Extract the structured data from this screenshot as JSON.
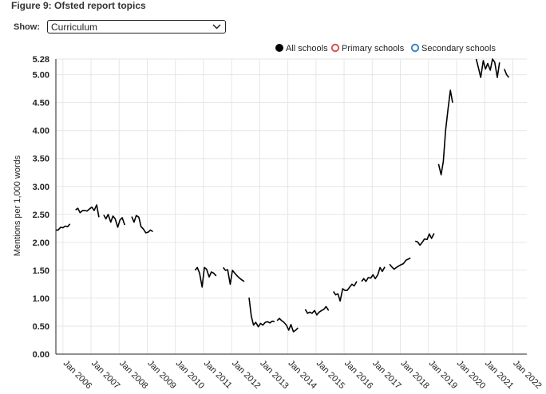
{
  "figure": {
    "title": "Figure 9: Ofsted report topics",
    "show_label": "Show:",
    "selected_option": "Curriculum"
  },
  "chart_data": {
    "type": "line",
    "ylabel": "Mentions per 1,000 words",
    "xlabel": "",
    "ylim": [
      0,
      5.28
    ],
    "yticks": [
      {
        "value": 0.0,
        "label": "0.00"
      },
      {
        "value": 0.5,
        "label": "0.50"
      },
      {
        "value": 1.0,
        "label": "1.00"
      },
      {
        "value": 1.5,
        "label": "1.50"
      },
      {
        "value": 2.0,
        "label": "2.00"
      },
      {
        "value": 2.5,
        "label": "2.50"
      },
      {
        "value": 3.0,
        "label": "3.00"
      },
      {
        "value": 3.5,
        "label": "3.50"
      },
      {
        "value": 4.0,
        "label": "4.00"
      },
      {
        "value": 4.5,
        "label": "4.50"
      },
      {
        "value": 5.0,
        "label": "5.00"
      },
      {
        "value": 5.28,
        "label": "5.28"
      }
    ],
    "xlim": [
      2005.75,
      2022.5
    ],
    "xticks": [
      {
        "value": 2006,
        "label": "Jan 2006"
      },
      {
        "value": 2007,
        "label": "Jan 2007"
      },
      {
        "value": 2008,
        "label": "Jan 2008"
      },
      {
        "value": 2009,
        "label": "Jan 2009"
      },
      {
        "value": 2010,
        "label": "Jan 2010"
      },
      {
        "value": 2011,
        "label": "Jan 2011"
      },
      {
        "value": 2012,
        "label": "Jan 2012"
      },
      {
        "value": 2013,
        "label": "Jan 2013"
      },
      {
        "value": 2014,
        "label": "Jan 2014"
      },
      {
        "value": 2015,
        "label": "Jan 2015"
      },
      {
        "value": 2016,
        "label": "Jan 2016"
      },
      {
        "value": 2017,
        "label": "Jan 2017"
      },
      {
        "value": 2018,
        "label": "Jan 2018"
      },
      {
        "value": 2019,
        "label": "Jan 2019"
      },
      {
        "value": 2020,
        "label": "Jan 2020"
      },
      {
        "value": 2021,
        "label": "Jan 2021"
      },
      {
        "value": 2022,
        "label": "Jan 2022"
      }
    ],
    "legend": {
      "placement": "top-right",
      "entries": [
        {
          "name": "All schools",
          "color": "#000000",
          "filled": true
        },
        {
          "name": "Primary schools",
          "color": "#d9534f",
          "filled": false
        },
        {
          "name": "Secondary schools",
          "color": "#3a87c8",
          "filled": false
        }
      ]
    },
    "grid": true,
    "series": [
      {
        "name": "All schools",
        "color": "#000000",
        "segments": [
          [
            [
              2005.75,
              2.22
            ],
            [
              2005.83,
              2.22
            ],
            [
              2005.92,
              2.27
            ],
            [
              2006.0,
              2.26
            ],
            [
              2006.08,
              2.29
            ],
            [
              2006.17,
              2.28
            ],
            [
              2006.25,
              2.33
            ]
          ],
          [
            [
              2006.45,
              2.58
            ],
            [
              2006.53,
              2.61
            ],
            [
              2006.61,
              2.53
            ],
            [
              2006.7,
              2.57
            ],
            [
              2006.78,
              2.57
            ],
            [
              2006.86,
              2.56
            ],
            [
              2006.95,
              2.6
            ],
            [
              2007.03,
              2.63
            ],
            [
              2007.11,
              2.57
            ],
            [
              2007.2,
              2.67
            ],
            [
              2007.28,
              2.45
            ]
          ],
          [
            [
              2007.45,
              2.49
            ],
            [
              2007.53,
              2.42
            ],
            [
              2007.61,
              2.5
            ],
            [
              2007.7,
              2.36
            ],
            [
              2007.78,
              2.47
            ],
            [
              2007.86,
              2.42
            ],
            [
              2007.95,
              2.27
            ],
            [
              2008.03,
              2.4
            ],
            [
              2008.11,
              2.44
            ],
            [
              2008.2,
              2.31
            ]
          ],
          [
            [
              2008.45,
              2.46
            ],
            [
              2008.53,
              2.36
            ],
            [
              2008.61,
              2.48
            ],
            [
              2008.7,
              2.45
            ],
            [
              2008.78,
              2.28
            ],
            [
              2008.86,
              2.24
            ],
            [
              2008.95,
              2.17
            ],
            [
              2009.03,
              2.18
            ],
            [
              2009.11,
              2.22
            ],
            [
              2009.2,
              2.19
            ]
          ],
          [
            [
              2010.7,
              1.5
            ],
            [
              2010.78,
              1.55
            ],
            [
              2010.86,
              1.45
            ],
            [
              2010.95,
              1.2
            ],
            [
              2011.03,
              1.55
            ],
            [
              2011.11,
              1.52
            ],
            [
              2011.2,
              1.38
            ],
            [
              2011.28,
              1.47
            ],
            [
              2011.36,
              1.45
            ],
            [
              2011.45,
              1.4
            ]
          ],
          [
            [
              2011.7,
              1.55
            ],
            [
              2011.78,
              1.5
            ],
            [
              2011.86,
              1.51
            ],
            [
              2011.95,
              1.25
            ],
            [
              2012.03,
              1.5
            ],
            [
              2012.11,
              1.45
            ],
            [
              2012.2,
              1.4
            ],
            [
              2012.28,
              1.36
            ],
            [
              2012.36,
              1.33
            ],
            [
              2012.45,
              1.3
            ]
          ],
          [
            [
              2012.62,
              1.01
            ],
            [
              2012.7,
              0.68
            ],
            [
              2012.78,
              0.52
            ],
            [
              2012.86,
              0.57
            ],
            [
              2012.95,
              0.49
            ],
            [
              2013.03,
              0.55
            ],
            [
              2013.11,
              0.52
            ],
            [
              2013.2,
              0.57
            ],
            [
              2013.28,
              0.58
            ],
            [
              2013.36,
              0.56
            ],
            [
              2013.45,
              0.59
            ],
            [
              2013.53,
              0.58
            ]
          ],
          [
            [
              2013.62,
              0.6
            ],
            [
              2013.7,
              0.64
            ],
            [
              2013.78,
              0.6
            ],
            [
              2013.86,
              0.57
            ],
            [
              2013.95,
              0.52
            ],
            [
              2014.03,
              0.43
            ],
            [
              2014.11,
              0.53
            ],
            [
              2014.2,
              0.4
            ],
            [
              2014.28,
              0.43
            ],
            [
              2014.36,
              0.47
            ]
          ],
          [
            [
              2014.62,
              0.8
            ],
            [
              2014.7,
              0.73
            ],
            [
              2014.78,
              0.75
            ],
            [
              2014.86,
              0.73
            ],
            [
              2014.95,
              0.78
            ],
            [
              2015.03,
              0.7
            ],
            [
              2015.11,
              0.75
            ],
            [
              2015.2,
              0.78
            ],
            [
              2015.28,
              0.8
            ],
            [
              2015.36,
              0.85
            ],
            [
              2015.45,
              0.78
            ]
          ],
          [
            [
              2015.62,
              1.12
            ],
            [
              2015.7,
              1.06
            ],
            [
              2015.78,
              1.08
            ],
            [
              2015.86,
              0.95
            ],
            [
              2015.95,
              1.17
            ],
            [
              2016.03,
              1.14
            ],
            [
              2016.11,
              1.14
            ],
            [
              2016.2,
              1.2
            ],
            [
              2016.28,
              1.25
            ],
            [
              2016.36,
              1.22
            ],
            [
              2016.45,
              1.3
            ]
          ],
          [
            [
              2016.62,
              1.3
            ],
            [
              2016.7,
              1.35
            ],
            [
              2016.78,
              1.3
            ],
            [
              2016.86,
              1.37
            ],
            [
              2016.95,
              1.36
            ],
            [
              2017.03,
              1.42
            ],
            [
              2017.11,
              1.35
            ],
            [
              2017.2,
              1.42
            ],
            [
              2017.28,
              1.55
            ],
            [
              2017.36,
              1.48
            ],
            [
              2017.45,
              1.56
            ]
          ],
          [
            [
              2017.62,
              1.61
            ],
            [
              2017.7,
              1.56
            ],
            [
              2017.78,
              1.52
            ],
            [
              2017.86,
              1.55
            ],
            [
              2017.95,
              1.58
            ],
            [
              2018.03,
              1.6
            ],
            [
              2018.11,
              1.62
            ],
            [
              2018.2,
              1.68
            ],
            [
              2018.28,
              1.7
            ],
            [
              2018.36,
              1.72
            ]
          ],
          [
            [
              2018.53,
              2.02
            ],
            [
              2018.61,
              2.01
            ],
            [
              2018.7,
              1.95
            ],
            [
              2018.78,
              2.0
            ],
            [
              2018.86,
              2.06
            ],
            [
              2018.95,
              2.05
            ],
            [
              2019.03,
              2.15
            ],
            [
              2019.11,
              2.07
            ],
            [
              2019.2,
              2.16
            ]
          ],
          [
            [
              2019.36,
              3.4
            ],
            [
              2019.45,
              3.21
            ],
            [
              2019.53,
              3.45
            ],
            [
              2019.61,
              4.0
            ],
            [
              2019.7,
              4.4
            ],
            [
              2019.78,
              4.72
            ],
            [
              2019.86,
              4.5
            ]
          ],
          [
            [
              2020.7,
              5.28
            ],
            [
              2020.78,
              5.12
            ],
            [
              2020.86,
              4.95
            ],
            [
              2020.95,
              5.25
            ],
            [
              2021.03,
              5.1
            ],
            [
              2021.11,
              5.2
            ],
            [
              2021.2,
              5.08
            ],
            [
              2021.28,
              5.3
            ],
            [
              2021.36,
              5.22
            ],
            [
              2021.45,
              4.95
            ],
            [
              2021.53,
              5.22
            ]
          ],
          [
            [
              2021.7,
              5.1
            ],
            [
              2021.78,
              5.0
            ],
            [
              2021.86,
              4.95
            ]
          ]
        ]
      }
    ]
  }
}
